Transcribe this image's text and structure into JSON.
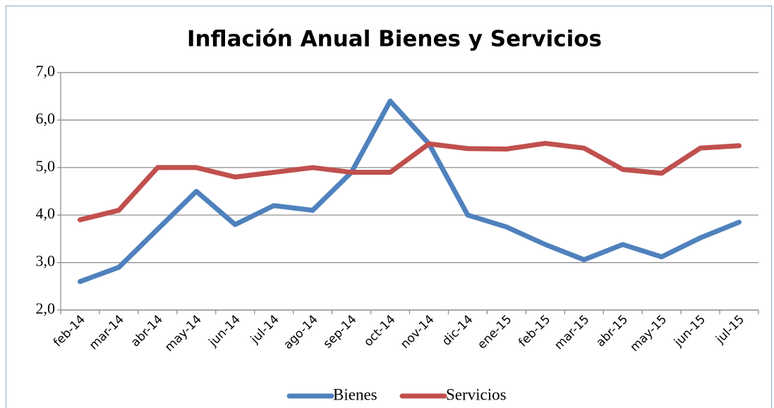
{
  "chart_data": {
    "type": "line",
    "title": "Inflación Anual Bienes y Servicios",
    "categories": [
      "feb-14",
      "mar-14",
      "abr-14",
      "may-14",
      "jun-14",
      "jul-14",
      "ago-14",
      "sep-14",
      "oct-14",
      "nov-14",
      "dic-14",
      "ene-15",
      "feb-15",
      "mar-15",
      "abr-15",
      "may-15",
      "jun-15",
      "jul-15"
    ],
    "series": [
      {
        "name": "Bienes",
        "color": "#4f81bd",
        "values": [
          2.6,
          2.9,
          3.7,
          4.5,
          3.8,
          4.2,
          4.1,
          4.9,
          6.4,
          5.5,
          4.0,
          3.75,
          3.38,
          3.06,
          3.38,
          3.12,
          3.52,
          3.85
        ]
      },
      {
        "name": "Servicios",
        "color": "#c0504d",
        "values": [
          3.9,
          4.1,
          5.0,
          5.0,
          4.8,
          4.9,
          5.0,
          4.9,
          4.9,
          5.5,
          5.4,
          5.39,
          5.51,
          5.41,
          4.96,
          4.88,
          5.41,
          5.46
        ]
      }
    ],
    "ylim": [
      2,
      7
    ],
    "yticks": [
      {
        "value": 2,
        "label": "2,0"
      },
      {
        "value": 3,
        "label": "3,0"
      },
      {
        "value": 4,
        "label": "4,0"
      },
      {
        "value": 5,
        "label": "5,0"
      },
      {
        "value": 6,
        "label": "6,0"
      },
      {
        "value": 7,
        "label": "7,0"
      }
    ],
    "grid": true,
    "legend": "bottom"
  }
}
